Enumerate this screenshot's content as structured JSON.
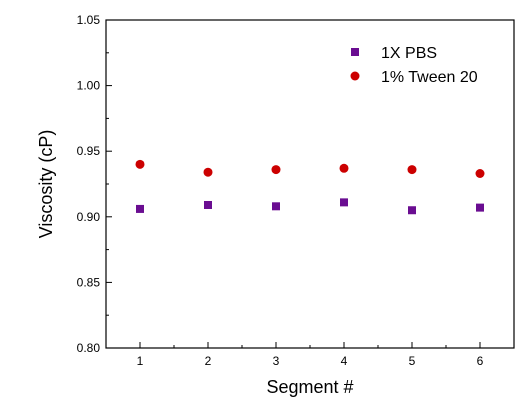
{
  "chart_data": {
    "type": "scatter",
    "title": "",
    "xlabel": "Segment #",
    "ylabel": "Viscosity (cP)",
    "xlim": [
      0.5,
      6.5
    ],
    "ylim": [
      0.8,
      1.05
    ],
    "xticks": [
      "1",
      "2",
      "3",
      "4",
      "5",
      "6"
    ],
    "yticks": [
      "0.80",
      "0.85",
      "0.90",
      "0.95",
      "1.00",
      "1.05"
    ],
    "grid": false,
    "legend_position": "top-right",
    "series": [
      {
        "name": "1X PBS",
        "marker": "square",
        "color": "#6a0d91",
        "x": [
          1,
          2,
          3,
          4,
          5,
          6
        ],
        "y": [
          0.906,
          0.909,
          0.908,
          0.911,
          0.905,
          0.907
        ]
      },
      {
        "name": "1% Tween 20",
        "marker": "circle",
        "color": "#cc0000",
        "x": [
          1,
          2,
          3,
          4,
          5,
          6
        ],
        "y": [
          0.94,
          0.934,
          0.936,
          0.937,
          0.936,
          0.933
        ]
      }
    ]
  }
}
